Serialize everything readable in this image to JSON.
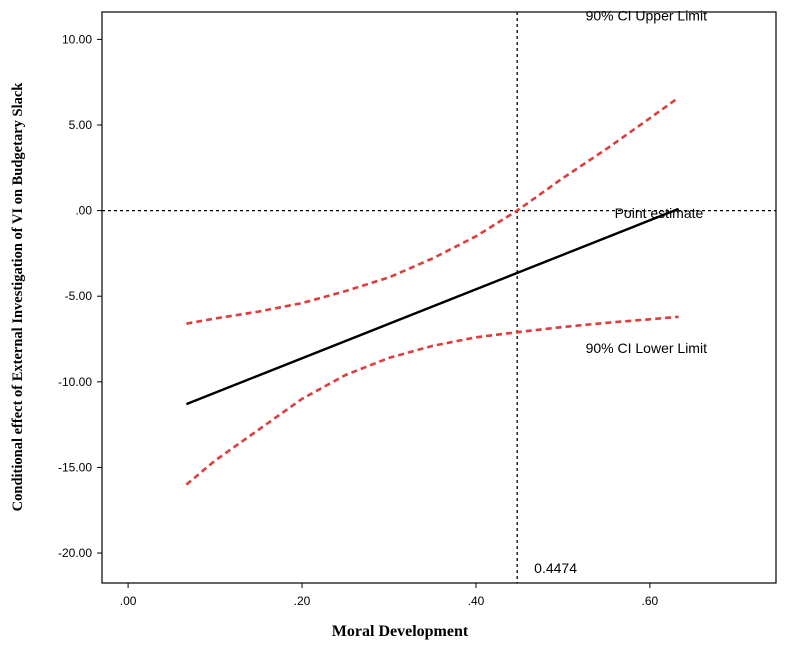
{
  "chart_data": {
    "type": "line",
    "xlabel": "Moral Development",
    "ylabel": "Conditional effect of External Investigation of VI on Budgetary Slack",
    "xlim": [
      -0.03,
      0.745
    ],
    "ylim": [
      -21.75,
      11.6
    ],
    "x_ticks": [
      0.0,
      0.2,
      0.4,
      0.6
    ],
    "x_tick_labels": [
      ".00",
      ".20",
      ".40",
      ".60"
    ],
    "y_ticks": [
      10,
      5,
      0,
      -5,
      -10,
      -15,
      -20
    ],
    "y_tick_labels": [
      "10.00",
      "5.00",
      ".00",
      "-5.00",
      "-10.00",
      "-15.00",
      "-20.00"
    ],
    "reference_lines": {
      "vertical_x": 0.4474,
      "vertical_label": "0.4474",
      "horizontal_y": 0
    },
    "series": [
      {
        "name": "Point estimate",
        "style": "solid",
        "color": "#000000",
        "x": [
          0.067,
          0.633
        ],
        "y": [
          -11.3,
          0.1
        ]
      },
      {
        "name": "90% CI Upper Limit",
        "style": "dashed",
        "color": "#e03c3c",
        "x": [
          0.067,
          0.1,
          0.15,
          0.2,
          0.25,
          0.3,
          0.35,
          0.4,
          0.4474,
          0.5,
          0.55,
          0.6,
          0.633
        ],
        "y": [
          -6.6,
          -6.3,
          -5.9,
          -5.4,
          -4.7,
          -3.9,
          -2.8,
          -1.5,
          0.0,
          1.9,
          3.6,
          5.4,
          6.6
        ]
      },
      {
        "name": "90% CI Lower Limit",
        "style": "dashed",
        "color": "#e03c3c",
        "x": [
          0.067,
          0.1,
          0.15,
          0.2,
          0.25,
          0.3,
          0.35,
          0.4,
          0.4474,
          0.5,
          0.55,
          0.6,
          0.633
        ],
        "y": [
          -16.0,
          -14.6,
          -12.8,
          -11.0,
          -9.6,
          -8.6,
          -7.9,
          -7.4,
          -7.1,
          -6.8,
          -6.55,
          -6.35,
          -6.2
        ]
      }
    ]
  },
  "colors": {
    "axis": "#000000",
    "point_estimate": "#000000",
    "confidence_band": "#e03c3c"
  }
}
